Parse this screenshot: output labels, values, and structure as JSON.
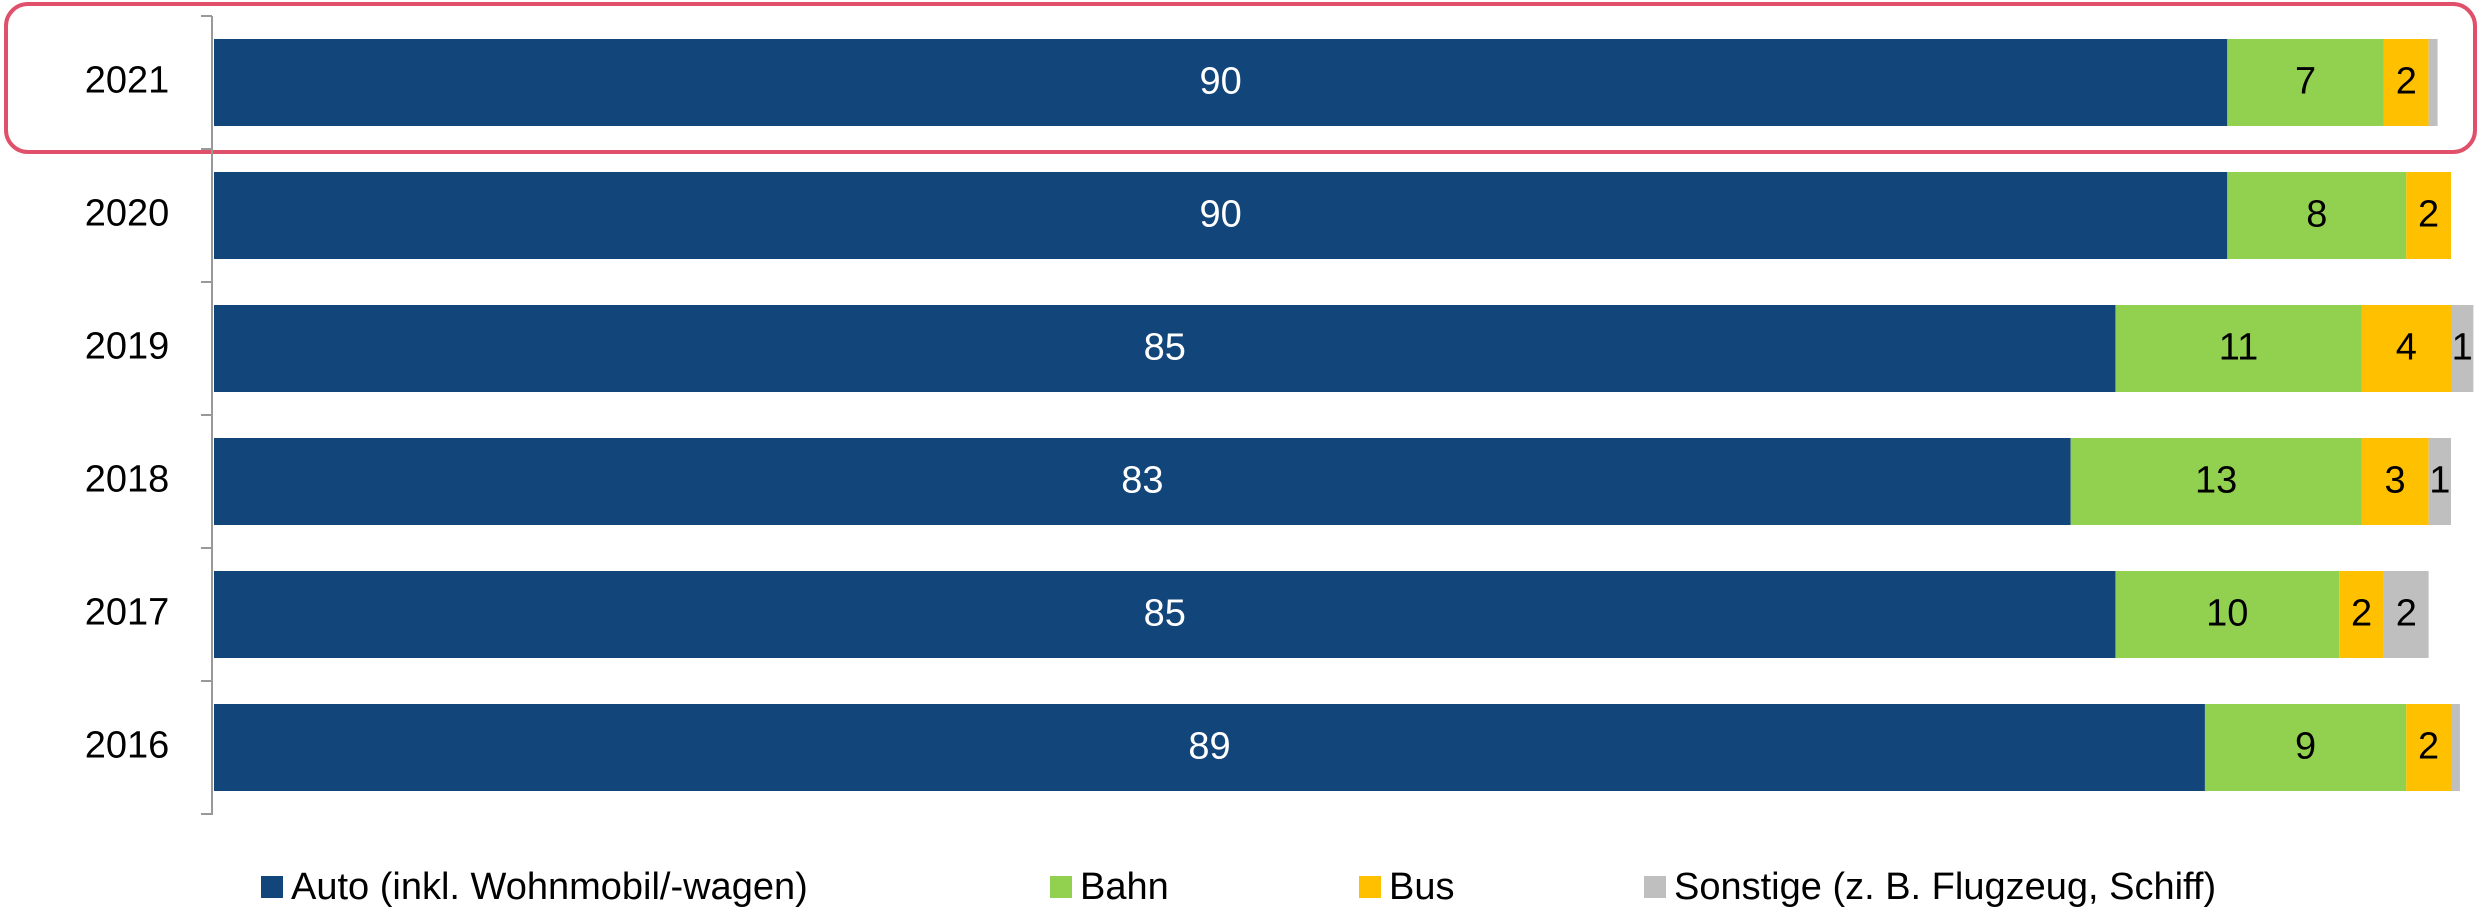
{
  "chart_data": {
    "type": "bar",
    "orientation": "horizontal",
    "stacked": true,
    "categories": [
      "2021",
      "2020",
      "2019",
      "2018",
      "2017",
      "2016"
    ],
    "series": [
      {
        "name": "Auto (inkl. Wohnmobil/-wagen)",
        "color": "#12467a",
        "values": [
          90,
          90,
          85,
          83,
          85,
          89
        ]
      },
      {
        "name": "Bahn",
        "color": "#92d050",
        "values": [
          7,
          8,
          11,
          13,
          10,
          9
        ]
      },
      {
        "name": "Bus",
        "color": "#ffc000",
        "values": [
          2,
          2,
          4,
          3,
          2,
          2
        ]
      },
      {
        "name": "Sonstige (z. B. Flugzeug, Schiff)",
        "color": "#bfbfbf",
        "values": [
          0.4,
          0,
          1,
          1,
          2,
          0.4
        ]
      }
    ],
    "xlim": [
      0,
      100
    ],
    "legend": "bottom"
  }
}
